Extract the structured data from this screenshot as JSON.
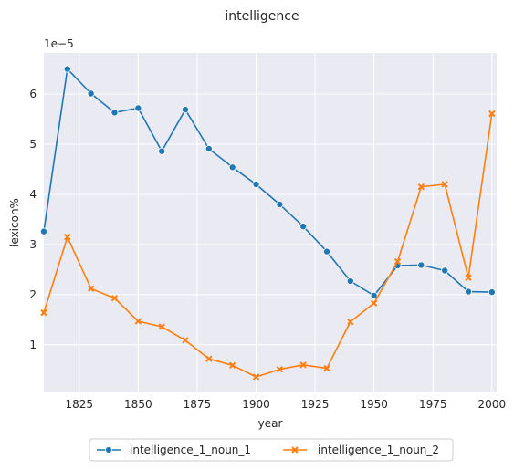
{
  "chart_data": {
    "type": "line",
    "title": "intelligence",
    "xlabel": "year",
    "ylabel": "lexicon%",
    "y_offset_label": "1e−5",
    "x": [
      1810,
      1820,
      1830,
      1840,
      1850,
      1860,
      1870,
      1880,
      1890,
      1900,
      1910,
      1920,
      1930,
      1940,
      1950,
      1960,
      1970,
      1980,
      1990,
      2000
    ],
    "xlim": [
      1810,
      2002
    ],
    "ylim": [
      0.05,
      6.82
    ],
    "x_ticks": [
      1825,
      1850,
      1875,
      1900,
      1925,
      1950,
      1975,
      2000
    ],
    "y_ticks": [
      1,
      2,
      3,
      4,
      5,
      6
    ],
    "grid": true,
    "legend_placement": "bottom-center",
    "series": [
      {
        "name": "intelligence_1_noun_1",
        "color": "#1f77b4",
        "marker": "circle",
        "values": [
          3.26,
          6.5,
          6.01,
          5.63,
          5.72,
          4.86,
          5.69,
          4.91,
          4.54,
          4.2,
          3.8,
          3.36,
          2.86,
          2.27,
          1.98,
          2.58,
          2.59,
          2.48,
          2.06,
          2.05
        ]
      },
      {
        "name": "intelligence_1_noun_2",
        "color": "#ff7f0e",
        "marker": "x",
        "values": [
          1.64,
          3.15,
          2.12,
          1.93,
          1.47,
          1.36,
          1.09,
          0.72,
          0.59,
          0.36,
          0.51,
          0.6,
          0.53,
          1.46,
          1.83,
          2.66,
          4.15,
          4.2,
          2.34,
          5.61
        ]
      }
    ]
  }
}
